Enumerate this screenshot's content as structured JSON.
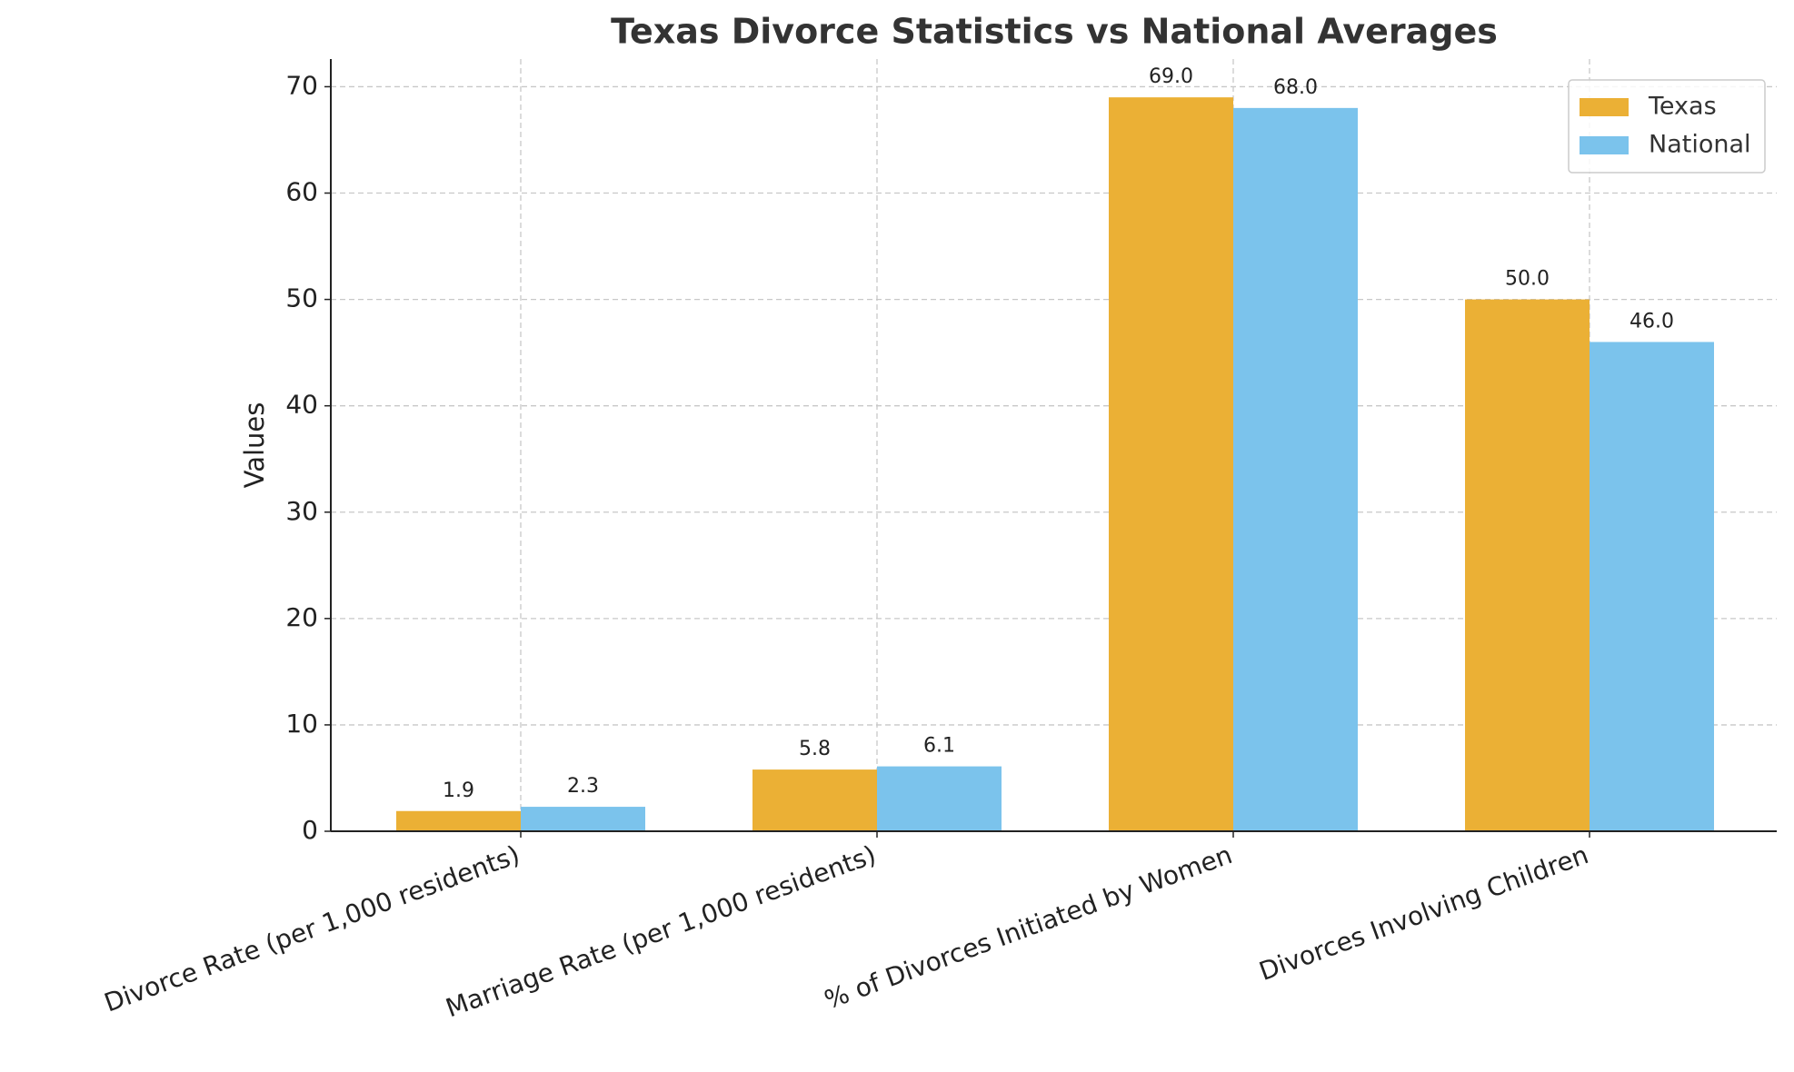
{
  "chart_data": {
    "type": "bar",
    "title": "Texas Divorce Statistics vs National Averages",
    "y_label": "Values",
    "categories": [
      "Divorce Rate (per 1,000 residents)",
      "Marriage Rate (per 1,000 residents)",
      "% of Divorces Initiated by Women",
      "Divorces Involving Children"
    ],
    "series": [
      {
        "name": "Texas",
        "color": "#ebb035",
        "values": [
          1.9,
          5.8,
          69,
          50
        ],
        "value_labels": [
          "1.9",
          "5.8",
          "69.0",
          "50.0"
        ]
      },
      {
        "name": "National",
        "color": "#7bc3ec",
        "values": [
          2.3,
          6.1,
          68,
          46
        ],
        "value_labels": [
          "2.3",
          "6.1",
          "68.0",
          "46.0"
        ]
      }
    ],
    "ylim": [
      0,
      72.6
    ],
    "yticks": [
      0,
      10,
      20,
      30,
      40,
      50,
      60,
      70
    ],
    "grid": true,
    "legend": "upper right"
  }
}
